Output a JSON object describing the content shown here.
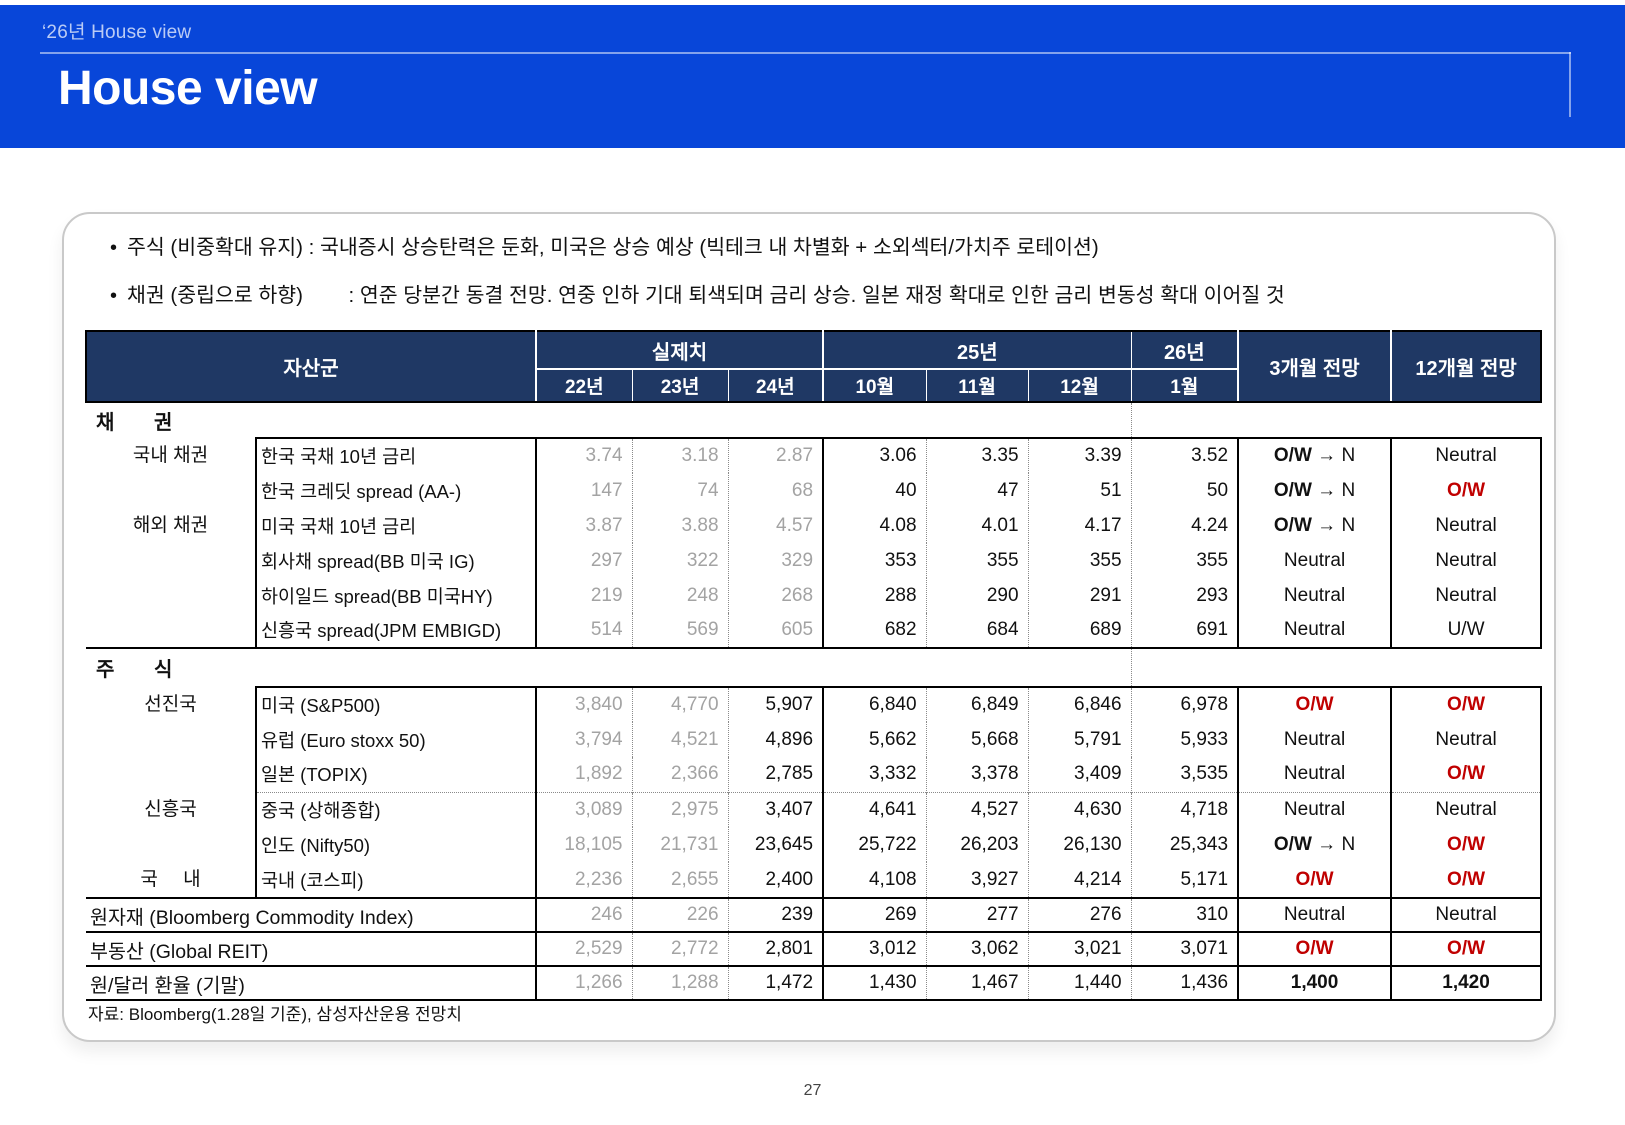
{
  "banner": {
    "eyebrow": "‘26년 House view",
    "title": "House view"
  },
  "bullets": [
    "주식 (비중확대 유지) : 국내증시 상승탄력은 둔화, 미국은 상승 예상 (빅테크 내 차별화 + 소외섹터/가치주 로테이션)",
    "채권 (중립으로 하향)        : 연준 당분간 동결 전망. 연중 인하 기대 퇴색되며 금리 상승. 일본 재정 확대로 인한 금리 변동성 확대 이어질 것"
  ],
  "table": {
    "header": {
      "asset_group": "자산군",
      "actuals": "실제치",
      "y25": "25년",
      "y26": "26년",
      "f3": "3개월 전망",
      "f12": "12개월 전망",
      "sub": [
        "22년",
        "23년",
        "24년",
        "10월",
        "11월",
        "12월",
        "1월"
      ]
    },
    "body": [
      {
        "kind": "label",
        "text": "채 권"
      },
      {
        "kind": "row",
        "top": true,
        "group": {
          "text": "국내 채권",
          "span": 2
        },
        "name": "한국 국채 10년 금리",
        "actuals": [
          "3.74",
          "3.18",
          "2.87"
        ],
        "gray": 3,
        "months": [
          "3.06",
          "3.35",
          "3.39",
          "3.52"
        ],
        "f3": {
          "text": "O/W → N",
          "shift": true
        },
        "f12": {
          "text": "Neutral"
        }
      },
      {
        "kind": "row",
        "name": "한국 크레딧 spread (AA-)",
        "actuals": [
          "147",
          "74",
          "68"
        ],
        "gray": 3,
        "months": [
          "40",
          "47",
          "51",
          "50"
        ],
        "f3": {
          "text": "O/W → N",
          "shift": true
        },
        "f12": {
          "text": "O/W",
          "red": true
        }
      },
      {
        "kind": "row",
        "group": {
          "text": "해외 채권",
          "span": 4,
          "bottom": true
        },
        "name": "미국 국채 10년 금리",
        "actuals": [
          "3.87",
          "3.88",
          "4.57"
        ],
        "gray": 3,
        "months": [
          "4.08",
          "4.01",
          "4.17",
          "4.24"
        ],
        "f3": {
          "text": "O/W → N",
          "shift": true
        },
        "f12": {
          "text": "Neutral"
        }
      },
      {
        "kind": "row",
        "name": "회사채 spread(BB 미국 IG)",
        "actuals": [
          "297",
          "322",
          "329"
        ],
        "gray": 3,
        "months": [
          "353",
          "355",
          "355",
          "355"
        ],
        "f3": {
          "text": "Neutral"
        },
        "f12": {
          "text": "Neutral"
        }
      },
      {
        "kind": "row",
        "name": "하이일드 spread(BB 미국HY)",
        "actuals": [
          "219",
          "248",
          "268"
        ],
        "gray": 3,
        "months": [
          "288",
          "290",
          "291",
          "293"
        ],
        "f3": {
          "text": "Neutral"
        },
        "f12": {
          "text": "Neutral"
        }
      },
      {
        "kind": "row",
        "bottom": true,
        "name": "신흥국 spread(JPM EMBIGD)",
        "actuals": [
          "514",
          "569",
          "605"
        ],
        "gray": 3,
        "months": [
          "682",
          "684",
          "689",
          "691"
        ],
        "f3": {
          "text": "Neutral"
        },
        "f12": {
          "text": "U/W"
        }
      },
      {
        "kind": "label",
        "text": "주 식",
        "tall": true
      },
      {
        "kind": "row",
        "top": true,
        "group": {
          "text": "선진국",
          "span": 3
        },
        "name": "미국 (S&P500)",
        "actuals": [
          "3,840",
          "4,770",
          "5,907"
        ],
        "gray": 2,
        "months": [
          "6,840",
          "6,849",
          "6,846",
          "6,978"
        ],
        "f3": {
          "text": "O/W",
          "red": true
        },
        "f12": {
          "text": "O/W",
          "red": true
        }
      },
      {
        "kind": "row",
        "name": "유럽 (Euro stoxx 50)",
        "actuals": [
          "3,794",
          "4,521",
          "4,896"
        ],
        "gray": 2,
        "months": [
          "5,662",
          "5,668",
          "5,791",
          "5,933"
        ],
        "f3": {
          "text": "Neutral"
        },
        "f12": {
          "text": "Neutral"
        }
      },
      {
        "kind": "row",
        "name": "일본 (TOPIX)",
        "actuals": [
          "1,892",
          "2,366",
          "2,785"
        ],
        "gray": 2,
        "months": [
          "3,332",
          "3,378",
          "3,409",
          "3,535"
        ],
        "f3": {
          "text": "Neutral"
        },
        "f12": {
          "text": "O/W",
          "red": true
        }
      },
      {
        "kind": "row",
        "divider": true,
        "group": {
          "text": "신흥국",
          "span": 2
        },
        "name": "중국 (상해종합)",
        "actuals": [
          "3,089",
          "2,975",
          "3,407"
        ],
        "gray": 2,
        "months": [
          "4,641",
          "4,527",
          "4,630",
          "4,718"
        ],
        "f3": {
          "text": "Neutral"
        },
        "f12": {
          "text": "Neutral"
        }
      },
      {
        "kind": "row",
        "name": "인도 (Nifty50)",
        "actuals": [
          "18,105",
          "21,731",
          "23,645"
        ],
        "gray": 2,
        "months": [
          "25,722",
          "26,203",
          "26,130",
          "25,343"
        ],
        "f3": {
          "text": "O/W → N",
          "shift": true
        },
        "f12": {
          "text": "O/W",
          "red": true
        }
      },
      {
        "kind": "row",
        "group": {
          "text": "국 내",
          "span": 1,
          "wide": true
        },
        "name": "국내 (코스피)",
        "actuals": [
          "2,236",
          "2,655",
          "2,400"
        ],
        "gray": 2,
        "months": [
          "4,108",
          "3,927",
          "4,214",
          "5,171"
        ],
        "f3": {
          "text": "O/W",
          "red": true
        },
        "f12": {
          "text": "O/W",
          "red": true
        }
      },
      {
        "kind": "flat",
        "name": "원자재 (Bloomberg Commodity Index)",
        "actuals": [
          "246",
          "226",
          "239"
        ],
        "gray": 2,
        "months": [
          "269",
          "277",
          "276",
          "310"
        ],
        "f3": {
          "text": "Neutral"
        },
        "f12": {
          "text": "Neutral"
        }
      },
      {
        "kind": "flat",
        "name": "부동산 (Global REIT)",
        "actuals": [
          "2,529",
          "2,772",
          "2,801"
        ],
        "gray": 2,
        "months": [
          "3,012",
          "3,062",
          "3,021",
          "3,071"
        ],
        "f3": {
          "text": "O/W",
          "red": true
        },
        "f12": {
          "text": "O/W",
          "red": true
        }
      },
      {
        "kind": "flat",
        "last": true,
        "name": "원/달러 환율 (기말)",
        "actuals": [
          "1,266",
          "1,288",
          "1,472"
        ],
        "gray": 2,
        "months": [
          "1,430",
          "1,467",
          "1,440",
          "1,436"
        ],
        "f3": {
          "text": "1,400",
          "bold": true
        },
        "f12": {
          "text": "1,420",
          "bold": true
        }
      }
    ]
  },
  "source_note": "자료: Bloomberg(1.28일 기준), 삼성자산운용 전망치",
  "page_number": "27",
  "colors": {
    "banner_blue": "#0846D9",
    "header_navy": "#1F3864",
    "accent_red": "#C00000",
    "muted_gray": "#A3A3A3"
  }
}
